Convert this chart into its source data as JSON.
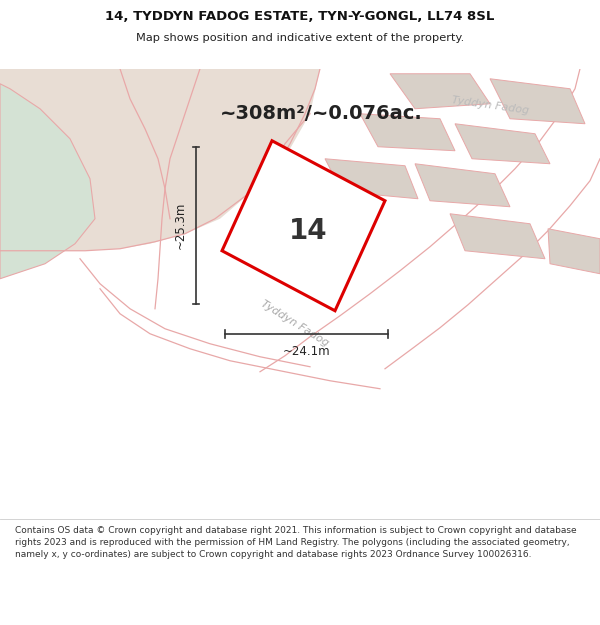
{
  "title_line1": "14, TYDDYN FADOG ESTATE, TYN-Y-GONGL, LL74 8SL",
  "title_line2": "Map shows position and indicative extent of the property.",
  "area_text": "~308m²/~0.076ac.",
  "plot_number": "14",
  "dim_width": "~24.1m",
  "dim_height": "~25.3m",
  "road_label1": "Tyddyn Fadog",
  "road_label2": "Tyddyn Fadog",
  "footer_text": "Contains OS data © Crown copyright and database right 2021. This information is subject to Crown copyright and database rights 2023 and is reproduced with the permission of HM Land Registry. The polygons (including the associated geometry, namely x, y co-ordinates) are subject to Crown copyright and database rights 2023 Ordnance Survey 100026316.",
  "map_bg": "#f0ebe4",
  "road_color": "#ffffff",
  "beige_area_color": "#e8ddd4",
  "green_area_color": "#d4e2d4",
  "pink_outline_color": "#e8a8a8",
  "red_outline_color": "#dd0000",
  "building_color": "#d8d0c8",
  "plot_fill": "#ffffff",
  "footer_bg": "#ffffff",
  "title_bg": "#ffffff",
  "dim_line_color": "#333333"
}
